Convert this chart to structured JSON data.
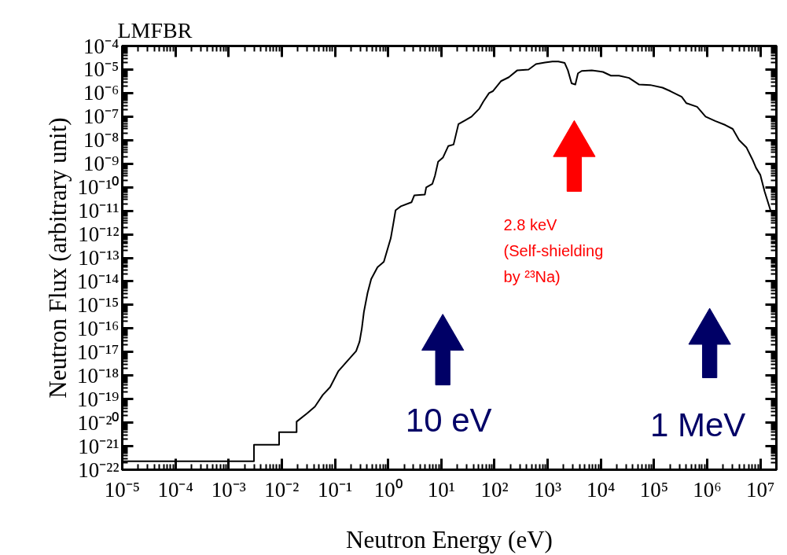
{
  "chart_data": {
    "type": "line",
    "title": "LMFBR",
    "xlabel": "Neutron Energy (eV)",
    "ylabel": "Neutron Flux (arbitrary unit)",
    "log": "xy",
    "grid": false,
    "marker": "none",
    "line_style": "solid",
    "xlim": [
      1e-05,
      20000000.0
    ],
    "ylim": [
      1e-22,
      0.0001
    ],
    "xticks": [
      {
        "value": 1e-05,
        "label": "10⁻⁵"
      },
      {
        "value": 0.0001,
        "label": "10⁻⁴"
      },
      {
        "value": 0.001,
        "label": "10⁻³"
      },
      {
        "value": 0.01,
        "label": "10⁻²"
      },
      {
        "value": 0.1,
        "label": "10⁻¹"
      },
      {
        "value": 1,
        "label": "10⁰"
      },
      {
        "value": 10,
        "label": "10¹"
      },
      {
        "value": 100,
        "label": "10²"
      },
      {
        "value": 1000,
        "label": "10³"
      },
      {
        "value": 10000,
        "label": "10⁴"
      },
      {
        "value": 100000,
        "label": "10⁵"
      },
      {
        "value": 1000000,
        "label": "10⁶"
      },
      {
        "value": 10000000,
        "label": "10⁷"
      }
    ],
    "yticks": [
      {
        "value": 0.0001,
        "label": "10⁻⁴"
      },
      {
        "value": 1e-05,
        "label": "10⁻⁵"
      },
      {
        "value": 1e-06,
        "label": "10⁻⁶"
      },
      {
        "value": 1e-07,
        "label": "10⁻⁷"
      },
      {
        "value": 1e-08,
        "label": "10⁻⁸"
      },
      {
        "value": 1e-09,
        "label": "10⁻⁹"
      },
      {
        "value": 1e-10,
        "label": "10⁻¹⁰"
      },
      {
        "value": 1e-11,
        "label": "10⁻¹¹"
      },
      {
        "value": 1e-12,
        "label": "10⁻¹²"
      },
      {
        "value": 1e-13,
        "label": "10⁻¹³"
      },
      {
        "value": 1e-14,
        "label": "10⁻¹⁴"
      },
      {
        "value": 1e-15,
        "label": "10⁻¹⁵"
      },
      {
        "value": 1e-16,
        "label": "10⁻¹⁶"
      },
      {
        "value": 1e-17,
        "label": "10⁻¹⁷"
      },
      {
        "value": 1e-18,
        "label": "10⁻¹⁸"
      },
      {
        "value": 1e-19,
        "label": "10⁻¹⁹"
      },
      {
        "value": 1e-20,
        "label": "10⁻²⁰"
      },
      {
        "value": 1e-21,
        "label": "10⁻²¹"
      },
      {
        "value": 1e-22,
        "label": "10⁻²²"
      }
    ],
    "series": [
      {
        "color": "#000000",
        "x": [
          1e-05,
          0.003,
          0.003,
          0.0089,
          0.0089,
          0.019,
          0.019,
          0.03,
          0.042,
          0.059,
          0.081,
          0.115,
          0.16,
          0.25,
          0.29,
          0.32,
          0.35,
          0.41,
          0.48,
          0.63,
          0.83,
          1.12,
          1.26,
          1.38,
          1.74,
          2.75,
          3.1,
          4.9,
          5.2,
          6.8,
          7.6,
          8.7,
          10.7,
          13.5,
          17,
          21,
          28,
          37,
          52,
          62,
          79,
          93,
          132,
          186,
          269,
          437,
          603,
          891,
          1230,
          1585,
          2089,
          2399,
          2818,
          3311,
          3715,
          4365,
          6761,
          10960,
          15490,
          21880,
          33880,
          52480,
          85110,
          144500,
          204200,
          331100,
          407400,
          645700,
          933300,
          1410000,
          2190000,
          3020000,
          3980000,
          5500000,
          7100000,
          8300000,
          10000000,
          12000000,
          15500000
        ],
        "values": [
          2.3e-22,
          2.3e-22,
          1.15e-21,
          1.15e-21,
          3.9e-21,
          3.9e-21,
          1.1e-20,
          2.5e-20,
          4.8e-20,
          1.5e-19,
          3.2e-19,
          1.5e-18,
          3.5e-18,
          1.1e-17,
          2.75e-17,
          1e-16,
          5e-16,
          3.2e-15,
          1.26e-14,
          4e-14,
          6.8e-14,
          6.8e-13,
          3.1e-12,
          1.05e-11,
          1.55e-11,
          2.3e-11,
          4.5e-11,
          4.9e-11,
          9.8e-11,
          1.4e-10,
          3.1e-10,
          1.2e-09,
          1.8e-09,
          5.6e-09,
          6.5e-09,
          4.8e-08,
          6.9e-08,
          1e-07,
          2.2e-07,
          4.4e-07,
          1e-06,
          1.2e-06,
          3.2e-06,
          4.7e-06,
          9.3e-06,
          1e-05,
          1.7e-05,
          2e-05,
          2.2e-05,
          2.2e-05,
          1.9e-05,
          9.3e-06,
          2.6e-06,
          2.3e-06,
          6.9e-06,
          8.7e-06,
          9.3e-06,
          7.9e-06,
          5.5e-06,
          5.5e-06,
          4.4e-06,
          2.3e-06,
          2.2e-06,
          1.7e-06,
          1.2e-06,
          6.9e-07,
          3.7e-07,
          2.6e-07,
          1e-07,
          6.5e-08,
          4.4e-08,
          3e-08,
          1e-08,
          4.8e-09,
          1.5e-09,
          6.6e-10,
          3.3e-10,
          6.6e-11,
          1.05e-11
        ]
      }
    ],
    "annotations": [
      "2.8 keV\n(Self-shielding\nby ²³Na)",
      "10 eV",
      "1 MeV"
    ]
  }
}
